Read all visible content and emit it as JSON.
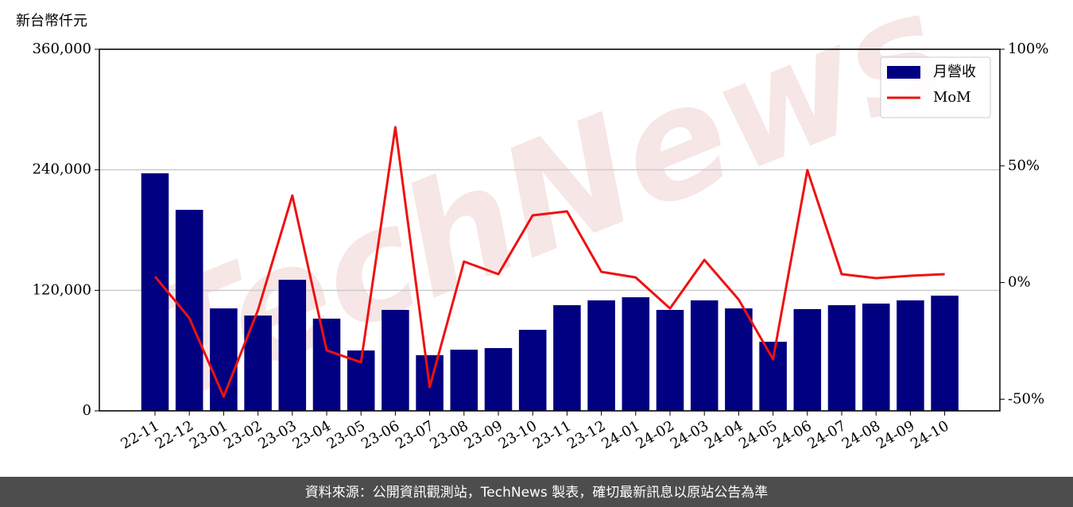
{
  "chart_data": {
    "type": "bar",
    "y_label": "新台幣仟元",
    "watermark": "TechNews",
    "source": "資料來源：公開資訊觀測站，TechNews 製表，確切最新訊息以原站公告為準",
    "categories": [
      "22-11",
      "22-12",
      "23-01",
      "23-02",
      "23-03",
      "23-04",
      "23-05",
      "23-06",
      "23-07",
      "23-08",
      "23-09",
      "23-10",
      "23-11",
      "23-12",
      "24-01",
      "24-02",
      "24-03",
      "24-04",
      "24-05",
      "24-06",
      "24-07",
      "24-08",
      "24-09",
      "24-10"
    ],
    "series": [
      {
        "name": "月營收",
        "type": "bar",
        "color": "#000080",
        "values": [
          236500,
          200100,
          102000,
          94900,
          130500,
          91800,
          60100,
          100500,
          55400,
          60900,
          62500,
          80700,
          105200,
          110000,
          113100,
          100500,
          110000,
          102000,
          68800,
          101300,
          105200,
          106800,
          110000,
          114700
        ]
      },
      {
        "name": "MoM",
        "type": "line",
        "axis": "y2",
        "color": "#ee1111",
        "values": [
          2.6,
          -15.2,
          -48.9,
          -11.8,
          37.3,
          -29.1,
          -34.2,
          66.6,
          -44.8,
          9.0,
          3.6,
          28.8,
          30.5,
          4.6,
          2.2,
          -11.1,
          9.7,
          -7.3,
          -32.9,
          48.2,
          3.6,
          1.9,
          2.9,
          3.6
        ]
      }
    ],
    "ylim": [
      0,
      360000
    ],
    "yticks": [
      0,
      {
        "value": 120000,
        "label": "120,000"
      },
      {
        "value": 240000,
        "label": "240,000"
      },
      {
        "value": 360000,
        "label": "360,000"
      }
    ],
    "y2lim": [
      -55,
      100
    ],
    "y2ticks": [
      {
        "value": -50,
        "label": "-50%"
      },
      {
        "value": 0,
        "label": "0%"
      },
      {
        "value": 50,
        "label": "50%"
      },
      {
        "value": 100,
        "label": "100%"
      }
    ],
    "grid": true,
    "legend": "upper right"
  }
}
